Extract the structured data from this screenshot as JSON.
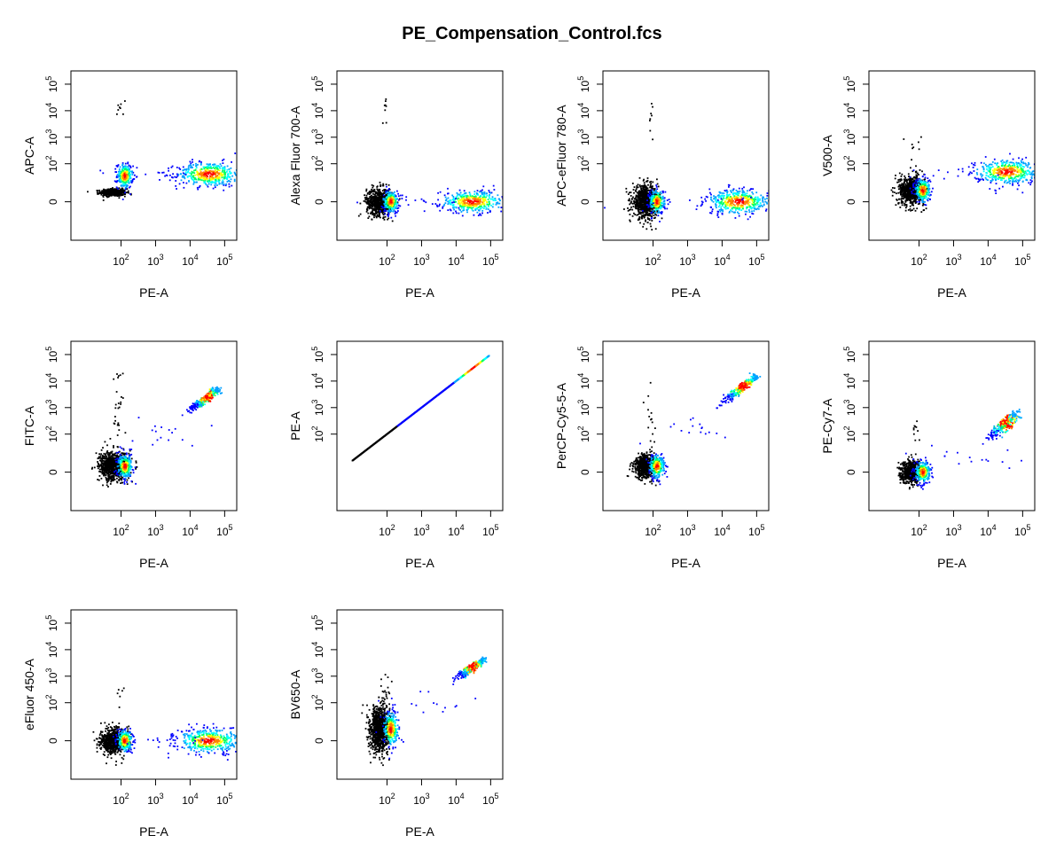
{
  "figure": {
    "title": "PE_Compensation_Control.fcs"
  },
  "colors": {
    "negative_events": "#000000",
    "density_scale": [
      "#0000ff",
      "#00a0ff",
      "#00ffff",
      "#00ff60",
      "#ffff00",
      "#ff8000",
      "#ff0000"
    ],
    "frame": "#000000"
  },
  "chart_data": [
    {
      "type": "scatter",
      "xlabel": "PE-A",
      "ylabel": "APC-A",
      "x_ticks": [
        "10^2",
        "10^3",
        "10^4",
        "10^5"
      ],
      "y_ticks": [
        "0",
        "10^2",
        "10^3",
        "10^4",
        "10^5"
      ],
      "populations": [
        {
          "kind": "black",
          "x": 60,
          "y": 8,
          "sx": 0.08,
          "sy": 0.03,
          "n": 500
        },
        {
          "kind": "density",
          "x": 130,
          "y": 35,
          "sx": 0.05,
          "sy": 0.1,
          "n": 250
        },
        {
          "kind": "density",
          "x": 35000,
          "y": 40,
          "sx": 0.2,
          "sy": 0.1,
          "n": 450
        },
        {
          "kind": "blue",
          "x": 1800,
          "y": 45,
          "sx": 0.45,
          "sy": 0.05,
          "n": 14
        },
        {
          "kind": "black",
          "x": 95,
          "y": 12000,
          "sx": 0.03,
          "sy": 0.08,
          "n": 8
        }
      ]
    },
    {
      "type": "scatter",
      "xlabel": "PE-A",
      "ylabel": "Alexa Fluor 700-A",
      "x_ticks": [
        "10^2",
        "10^3",
        "10^4",
        "10^5"
      ],
      "y_ticks": [
        "0",
        "10^2",
        "10^3",
        "10^4",
        "10^5"
      ],
      "populations": [
        {
          "kind": "black",
          "x": 60,
          "y": 0,
          "sx": 0.08,
          "sy": 0.11,
          "n": 700
        },
        {
          "kind": "density",
          "x": 130,
          "y": 0,
          "sx": 0.05,
          "sy": 0.09,
          "n": 250
        },
        {
          "kind": "density",
          "x": 30000,
          "y": 0,
          "sx": 0.2,
          "sy": 0.09,
          "n": 450
        },
        {
          "kind": "blue",
          "x": 2000,
          "y": 0,
          "sx": 0.45,
          "sy": 0.05,
          "n": 14
        },
        {
          "kind": "black",
          "x": 90,
          "y": 15000,
          "sx": 0.03,
          "sy": 0.15,
          "n": 8
        }
      ]
    },
    {
      "type": "scatter",
      "xlabel": "PE-A",
      "ylabel": "APC-eFluor 780-A",
      "x_ticks": [
        "10^2",
        "10^3",
        "10^4",
        "10^5"
      ],
      "y_ticks": [
        "0",
        "10^2",
        "10^3",
        "10^4",
        "10^5"
      ],
      "populations": [
        {
          "kind": "black",
          "x": 60,
          "y": 0,
          "sx": 0.08,
          "sy": 0.13,
          "n": 800
        },
        {
          "kind": "density",
          "x": 130,
          "y": 0,
          "sx": 0.05,
          "sy": 0.1,
          "n": 250
        },
        {
          "kind": "density",
          "x": 30000,
          "y": 0,
          "sx": 0.2,
          "sy": 0.1,
          "n": 450
        },
        {
          "kind": "blue",
          "x": 2000,
          "y": 0,
          "sx": 0.45,
          "sy": 0.05,
          "n": 14
        },
        {
          "kind": "black",
          "x": 90,
          "y": 5000,
          "sx": 0.03,
          "sy": 0.15,
          "n": 8
        }
      ]
    },
    {
      "type": "scatter",
      "xlabel": "PE-A",
      "ylabel": "V500-A",
      "x_ticks": [
        "10^2",
        "10^3",
        "10^4",
        "10^5"
      ],
      "y_ticks": [
        "0",
        "10^2",
        "10^3",
        "10^4",
        "10^5"
      ],
      "populations": [
        {
          "kind": "black",
          "x": 60,
          "y": 10,
          "sx": 0.08,
          "sy": 0.12,
          "n": 700
        },
        {
          "kind": "density",
          "x": 130,
          "y": 10,
          "sx": 0.05,
          "sy": 0.1,
          "n": 250
        },
        {
          "kind": "density",
          "x": 35000,
          "y": 50,
          "sx": 0.2,
          "sy": 0.1,
          "n": 450
        },
        {
          "kind": "blue",
          "x": 1800,
          "y": 40,
          "sx": 0.45,
          "sy": 0.05,
          "n": 14
        },
        {
          "kind": "black",
          "x": 70,
          "y": 450,
          "sx": 0.05,
          "sy": 0.1,
          "n": 8
        }
      ]
    },
    {
      "type": "scatter",
      "xlabel": "PE-A",
      "ylabel": "FITC-A",
      "x_ticks": [
        "10^2",
        "10^3",
        "10^4",
        "10^5"
      ],
      "y_ticks": [
        "0",
        "10^2",
        "10^3",
        "10^4",
        "10^5"
      ],
      "populations": [
        {
          "kind": "black",
          "x": 60,
          "y": 5,
          "sx": 0.09,
          "sy": 0.12,
          "n": 800
        },
        {
          "kind": "density",
          "x": 130,
          "y": 5,
          "sx": 0.05,
          "sy": 0.1,
          "n": 250
        },
        {
          "kind": "diagonal",
          "x0": 5000,
          "y0": 400,
          "x1": 60000,
          "y1": 4500,
          "spread": 0.06,
          "n": 300
        },
        {
          "kind": "blue",
          "x": 1500,
          "y": 120,
          "sx": 0.25,
          "sy": 0.12,
          "n": 16
        },
        {
          "kind": "black",
          "x": 85,
          "y": 600,
          "sx": 0.04,
          "sy": 0.25,
          "n": 25
        },
        {
          "kind": "black",
          "x": 95,
          "y": 15000,
          "sx": 0.02,
          "sy": 0.02,
          "n": 3
        }
      ]
    },
    {
      "type": "scatter",
      "xlabel": "PE-A",
      "ylabel": "PE-A",
      "x_ticks": [
        "10^2",
        "10^3",
        "10^4",
        "10^5"
      ],
      "y_ticks": [
        "10^2",
        "10^3",
        "10^4",
        "10^5"
      ],
      "populations": [
        {
          "kind": "identity",
          "x0": 10,
          "x1": 90000,
          "n": 500
        }
      ]
    },
    {
      "type": "scatter",
      "xlabel": "PE-A",
      "ylabel": "PerCP-Cy5-5-A",
      "x_ticks": [
        "10^2",
        "10^3",
        "10^4",
        "10^5"
      ],
      "y_ticks": [
        "0",
        "10^2",
        "10^3",
        "10^4",
        "10^5"
      ],
      "populations": [
        {
          "kind": "black",
          "x": 60,
          "y": 5,
          "sx": 0.07,
          "sy": 0.1,
          "n": 600
        },
        {
          "kind": "density",
          "x": 130,
          "y": 5,
          "sx": 0.05,
          "sy": 0.1,
          "n": 250
        },
        {
          "kind": "diagonal",
          "x0": 4000,
          "y0": 600,
          "x1": 90000,
          "y1": 14000,
          "spread": 0.06,
          "n": 300
        },
        {
          "kind": "blue",
          "x": 2000,
          "y": 150,
          "sx": 0.25,
          "sy": 0.12,
          "n": 16
        },
        {
          "kind": "black",
          "x": 85,
          "y": 300,
          "sx": 0.04,
          "sy": 0.25,
          "n": 15
        }
      ]
    },
    {
      "type": "scatter",
      "xlabel": "PE-A",
      "ylabel": "PE-Cy7-A",
      "x_ticks": [
        "10^2",
        "10^3",
        "10^4",
        "10^5"
      ],
      "y_ticks": [
        "0",
        "10^2",
        "10^3",
        "10^4",
        "10^5"
      ],
      "populations": [
        {
          "kind": "black",
          "x": 60,
          "y": 0,
          "sx": 0.07,
          "sy": 0.09,
          "n": 600
        },
        {
          "kind": "density",
          "x": 130,
          "y": 0,
          "sx": 0.05,
          "sy": 0.09,
          "n": 250
        },
        {
          "kind": "diagonal",
          "x0": 6000,
          "y0": 40,
          "x1": 60000,
          "y1": 500,
          "spread": 0.09,
          "n": 300
        },
        {
          "kind": "blue",
          "x": 2000,
          "y": 15,
          "sx": 0.3,
          "sy": 0.1,
          "n": 16
        },
        {
          "kind": "black",
          "x": 85,
          "y": 150,
          "sx": 0.04,
          "sy": 0.15,
          "n": 10
        }
      ]
    },
    {
      "type": "scatter",
      "xlabel": "PE-A",
      "ylabel": "eFluor 450-A",
      "x_ticks": [
        "10^2",
        "10^3",
        "10^4",
        "10^5"
      ],
      "y_ticks": [
        "0",
        "10^2",
        "10^3",
        "10^4",
        "10^5"
      ],
      "populations": [
        {
          "kind": "black",
          "x": 60,
          "y": 0,
          "sx": 0.08,
          "sy": 0.1,
          "n": 700
        },
        {
          "kind": "density",
          "x": 130,
          "y": 0,
          "sx": 0.05,
          "sy": 0.09,
          "n": 250
        },
        {
          "kind": "density",
          "x": 35000,
          "y": 0,
          "sx": 0.2,
          "sy": 0.1,
          "n": 450
        },
        {
          "kind": "blue",
          "x": 2000,
          "y": 0,
          "sx": 0.45,
          "sy": 0.05,
          "n": 14
        },
        {
          "kind": "black",
          "x": 90,
          "y": 150,
          "sx": 0.03,
          "sy": 0.1,
          "n": 6
        }
      ]
    },
    {
      "type": "scatter",
      "xlabel": "PE-A",
      "ylabel": "BV650-A",
      "x_ticks": [
        "10^2",
        "10^3",
        "10^4",
        "10^5"
      ],
      "y_ticks": [
        "0",
        "10^2",
        "10^3",
        "10^4",
        "10^5"
      ],
      "populations": [
        {
          "kind": "black",
          "x": 60,
          "y": 10,
          "sx": 0.06,
          "sy": 0.19,
          "n": 1000
        },
        {
          "kind": "density",
          "x": 130,
          "y": 10,
          "sx": 0.05,
          "sy": 0.14,
          "n": 250
        },
        {
          "kind": "diagonal",
          "x0": 5000,
          "y0": 400,
          "x1": 60000,
          "y1": 4000,
          "spread": 0.06,
          "n": 300
        },
        {
          "kind": "blue",
          "x": 1500,
          "y": 100,
          "sx": 0.25,
          "sy": 0.12,
          "n": 16
        },
        {
          "kind": "black",
          "x": 85,
          "y": 200,
          "sx": 0.04,
          "sy": 0.25,
          "n": 20
        }
      ]
    }
  ]
}
